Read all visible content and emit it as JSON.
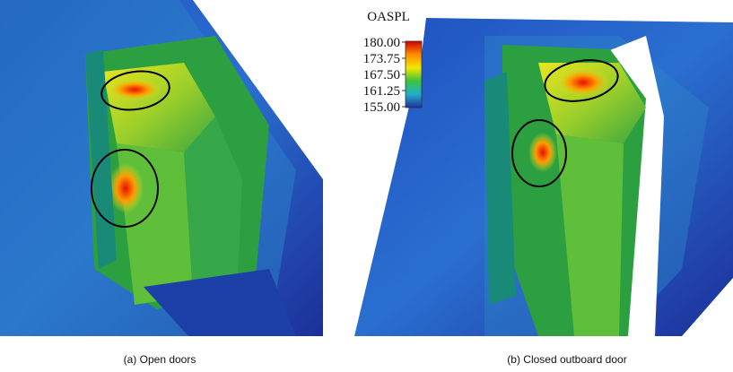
{
  "legend": {
    "title": "OASPL",
    "range": [
      155,
      180
    ],
    "ticks": [
      {
        "value": 180,
        "label": "180.00"
      },
      {
        "value": 173.75,
        "label": "173.75"
      },
      {
        "value": 167.5,
        "label": "167.50"
      },
      {
        "value": 161.25,
        "label": "161.25"
      },
      {
        "value": 155,
        "label": "155.00"
      }
    ]
  },
  "captions": [
    "(a) Open doors",
    "(b) Closed outboard door"
  ]
}
